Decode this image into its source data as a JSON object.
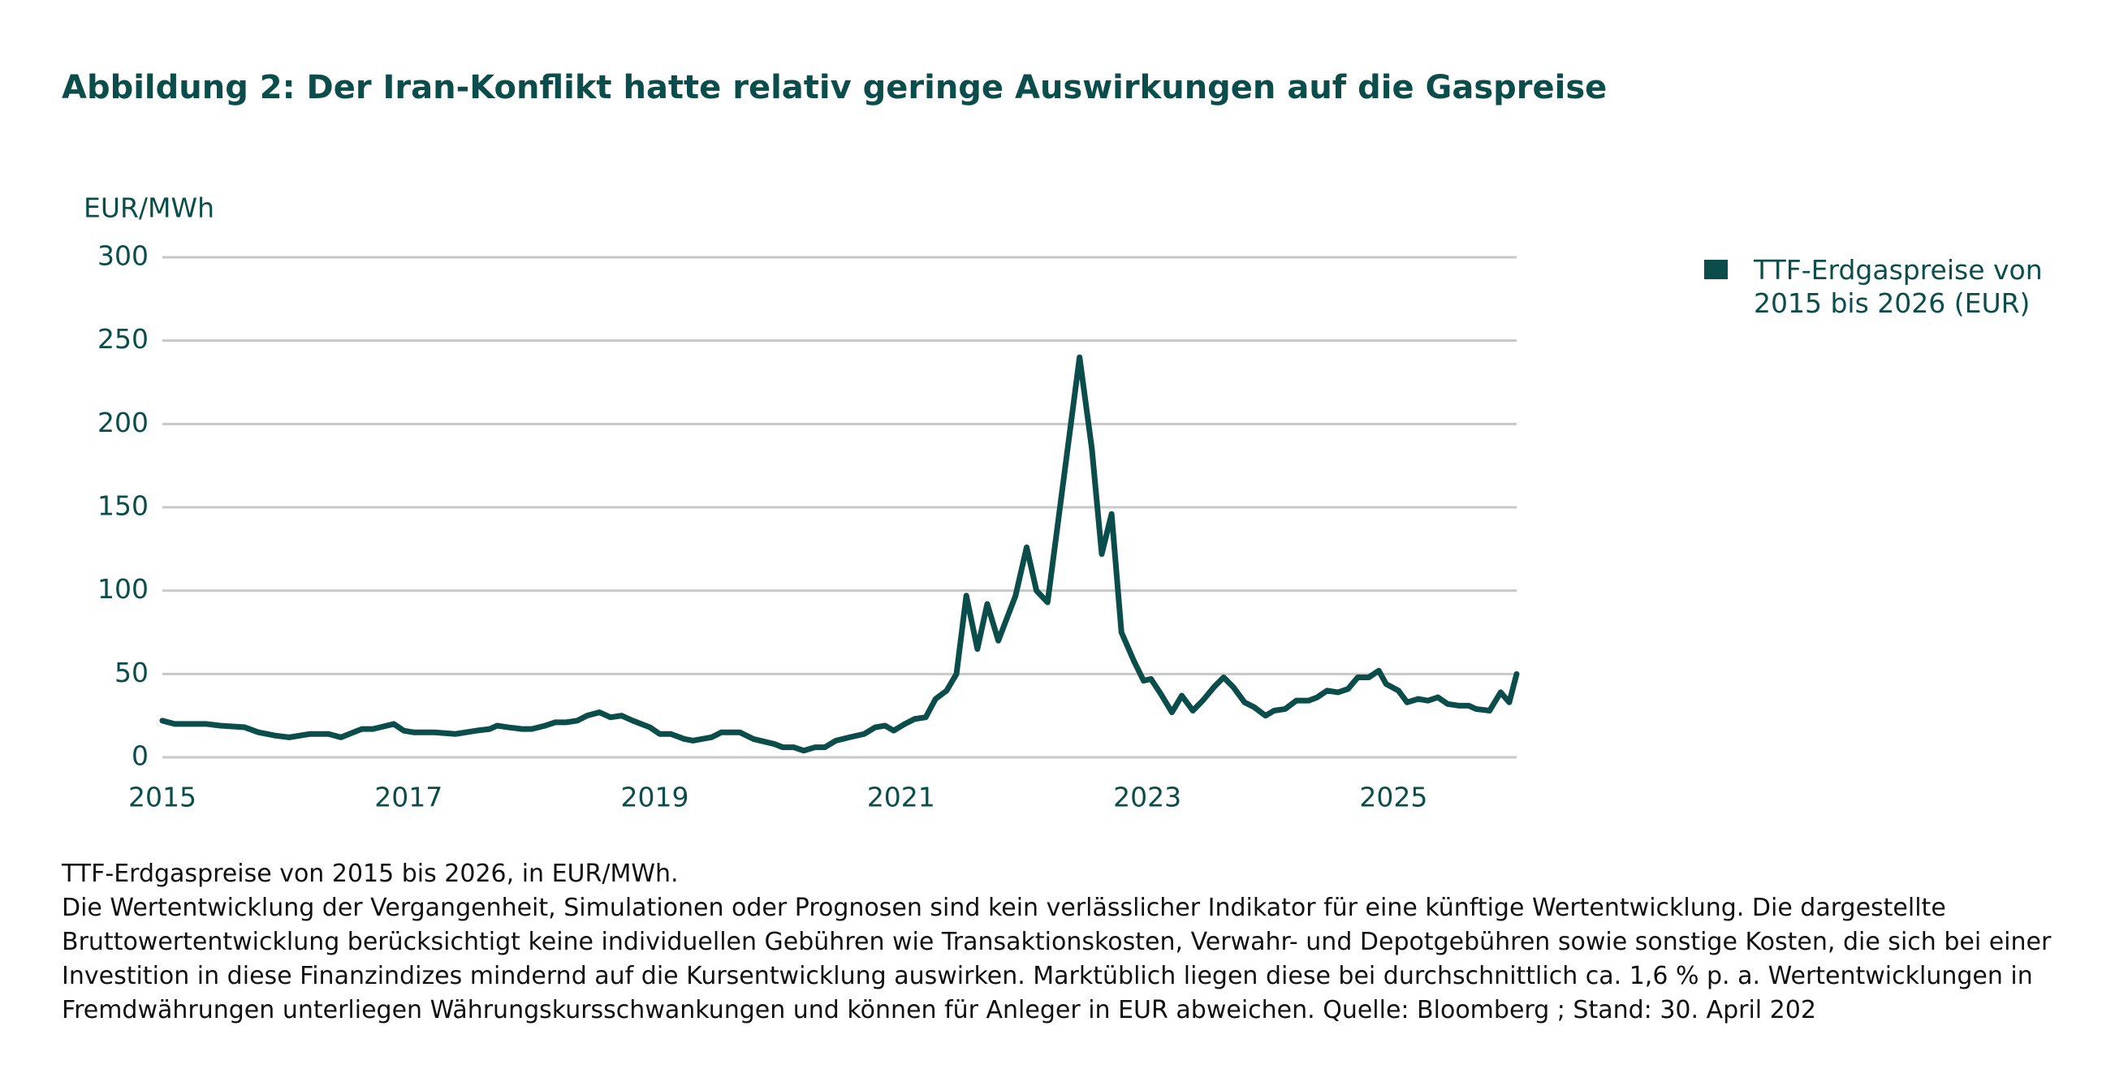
{
  "chart_data": {
    "type": "line",
    "title": "Abbildung 2: Der Iran-Konflikt hatte relativ geringe Auswirkungen auf die Gaspreise",
    "y_label": "EUR/MWh",
    "x": [
      2015.0,
      2015.1,
      2015.36,
      2015.47,
      2015.67,
      2015.78,
      2015.92,
      2016.03,
      2016.2,
      2016.35,
      2016.45,
      2016.62,
      2016.71,
      2016.88,
      2016.96,
      2017.04,
      2017.21,
      2017.38,
      2017.55,
      2017.66,
      2017.72,
      2017.81,
      2017.92,
      2018.0,
      2018.11,
      2018.19,
      2018.28,
      2018.37,
      2018.45,
      2018.55,
      2018.64,
      2018.73,
      2018.82,
      2018.96,
      2019.04,
      2019.13,
      2019.24,
      2019.31,
      2019.46,
      2019.54,
      2019.69,
      2019.8,
      2019.97,
      2020.04,
      2020.13,
      2020.21,
      2020.3,
      2020.38,
      2020.47,
      2020.58,
      2020.7,
      2020.79,
      2020.87,
      2020.94,
      2021.03,
      2021.11,
      2021.2,
      2021.28,
      2021.37,
      2021.45,
      2021.53,
      2021.62,
      2021.7,
      2021.79,
      2021.93,
      2022.02,
      2022.1,
      2022.19,
      2022.45,
      2022.55,
      2022.63,
      2022.71,
      2022.79,
      2022.89,
      2022.97,
      2023.03,
      2023.11,
      2023.2,
      2023.28,
      2023.37,
      2023.45,
      2023.54,
      2023.62,
      2023.7,
      2023.79,
      2023.87,
      2023.96,
      2024.03,
      2024.12,
      2024.21,
      2024.31,
      2024.38,
      2024.46,
      2024.55,
      2024.63,
      2024.71,
      2024.8,
      2024.88,
      2024.94,
      2025.04,
      2025.11,
      2025.2,
      2025.28,
      2025.36,
      2025.44,
      2025.53,
      2025.61,
      2025.67,
      2025.78,
      2025.87,
      2025.94,
      2026.0
    ],
    "series": [
      {
        "name": "TTF-Erdgaspreise von 2015 bis 2026 (EUR)",
        "color": "#0b4d4a",
        "values": [
          22,
          20,
          20,
          19,
          18,
          15,
          13,
          12,
          14,
          14,
          12,
          17,
          17,
          20,
          16,
          15,
          15,
          14,
          16,
          17,
          19,
          18,
          17,
          17,
          19,
          21,
          21,
          22,
          25,
          27,
          24,
          25,
          22,
          18,
          14,
          14,
          11,
          10,
          12,
          15,
          15,
          11,
          8,
          6,
          6,
          4,
          6,
          6,
          10,
          12,
          14,
          18,
          19,
          16,
          20,
          23,
          24,
          35,
          40,
          50,
          97,
          65,
          92,
          70,
          97,
          126,
          100,
          93,
          240,
          185,
          122,
          146,
          75,
          58,
          46,
          47,
          38,
          27,
          37,
          28,
          34,
          42,
          48,
          42,
          33,
          30,
          25,
          28,
          29,
          34,
          34,
          36,
          40,
          39,
          41,
          48,
          48,
          52,
          44,
          40,
          33,
          35,
          34,
          36,
          32,
          31,
          31,
          29,
          28,
          39,
          33,
          50
        ]
      }
    ],
    "xlim": [
      2015,
      2026
    ],
    "xticks": [
      2015,
      2017,
      2019,
      2021,
      2023,
      2025
    ],
    "ylim": [
      0,
      300
    ],
    "yticks": [
      0,
      50,
      100,
      150,
      200,
      250,
      300
    ],
    "grid": true,
    "legend": "right"
  },
  "notes": {
    "caption": "TTF-Erdgaspreise von 2015 bis 2026, in EUR/MWh.",
    "disclaimer": "Die Wertentwicklung der Vergangenheit, Simulationen oder Prognosen sind kein verlässlicher Indikator für eine künftige Wertentwicklung. Die dargestellte Bruttowertentwicklung berücksichtigt keine individuellen Gebühren wie Transaktionskosten, Verwahr- und Depotgebühren sowie sonstige Kosten, die sich bei einer Investition in diese Finanzindizes mindernd auf die Kursentwicklung auswirken. Marktüblich liegen diese bei durchschnittlich ca. 1,6 % p. a. Wertentwicklungen in Fremdwährungen unterliegen Währungskursschwankungen und können für Anleger in EUR abweichen. Quelle: Bloomberg ; Stand: 30. April 202"
  }
}
